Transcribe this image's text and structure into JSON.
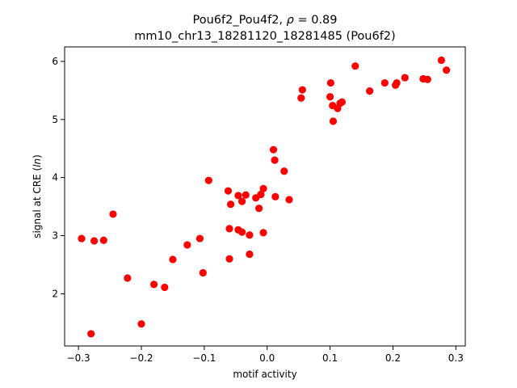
{
  "chart_data": {
    "type": "scatter",
    "title_line1_prefix": "Pou6f2_Pou4f2, ",
    "title_rho": "ρ",
    "title_line1_suffix": " = 0.89",
    "title_line2": "mm10_chr13_18281120_18281485 (Pou6f2)",
    "xlabel": "motif activity",
    "ylabel_prefix": "signal at CRE (",
    "ylabel_italic": "ln",
    "ylabel_suffix": ")",
    "xlim": [
      -0.322,
      0.315
    ],
    "ylim": [
      1.1,
      6.25
    ],
    "xticks": [
      -0.3,
      -0.2,
      -0.1,
      0.0,
      0.1,
      0.2,
      0.3
    ],
    "xtick_labels": [
      "−0.3",
      "−0.2",
      "−0.1",
      "0.0",
      "0.1",
      "0.2",
      "0.3"
    ],
    "yticks": [
      2,
      3,
      4,
      5,
      6
    ],
    "ytick_labels": [
      "2",
      "3",
      "4",
      "5",
      "6"
    ],
    "marker_color": "#ff0000",
    "grid": false,
    "points": [
      {
        "x": -0.295,
        "y": 2.95
      },
      {
        "x": -0.275,
        "y": 2.91
      },
      {
        "x": -0.26,
        "y": 2.92
      },
      {
        "x": -0.28,
        "y": 1.31
      },
      {
        "x": -0.245,
        "y": 3.37
      },
      {
        "x": -0.222,
        "y": 2.27
      },
      {
        "x": -0.2,
        "y": 1.48
      },
      {
        "x": -0.18,
        "y": 2.16
      },
      {
        "x": -0.163,
        "y": 2.11
      },
      {
        "x": -0.15,
        "y": 2.59
      },
      {
        "x": -0.127,
        "y": 2.84
      },
      {
        "x": -0.107,
        "y": 2.95
      },
      {
        "x": -0.102,
        "y": 2.36
      },
      {
        "x": -0.093,
        "y": 3.95
      },
      {
        "x": -0.062,
        "y": 3.77
      },
      {
        "x": -0.058,
        "y": 3.54
      },
      {
        "x": -0.06,
        "y": 3.12
      },
      {
        "x": -0.06,
        "y": 2.6
      },
      {
        "x": -0.046,
        "y": 3.69
      },
      {
        "x": -0.046,
        "y": 3.1
      },
      {
        "x": -0.04,
        "y": 3.59
      },
      {
        "x": -0.04,
        "y": 3.06
      },
      {
        "x": -0.034,
        "y": 3.7
      },
      {
        "x": -0.028,
        "y": 3.01
      },
      {
        "x": -0.028,
        "y": 2.68
      },
      {
        "x": -0.018,
        "y": 3.65
      },
      {
        "x": -0.013,
        "y": 3.47
      },
      {
        "x": -0.01,
        "y": 3.71
      },
      {
        "x": -0.006,
        "y": 3.81
      },
      {
        "x": -0.006,
        "y": 3.05
      },
      {
        "x": 0.01,
        "y": 4.48
      },
      {
        "x": 0.012,
        "y": 4.3
      },
      {
        "x": 0.013,
        "y": 3.67
      },
      {
        "x": 0.027,
        "y": 4.11
      },
      {
        "x": 0.035,
        "y": 3.62
      },
      {
        "x": 0.054,
        "y": 5.37
      },
      {
        "x": 0.056,
        "y": 5.51
      },
      {
        "x": 0.1,
        "y": 5.39
      },
      {
        "x": 0.101,
        "y": 5.63
      },
      {
        "x": 0.104,
        "y": 5.24
      },
      {
        "x": 0.105,
        "y": 4.97
      },
      {
        "x": 0.112,
        "y": 5.19
      },
      {
        "x": 0.116,
        "y": 5.28
      },
      {
        "x": 0.119,
        "y": 5.3
      },
      {
        "x": 0.14,
        "y": 5.92
      },
      {
        "x": 0.163,
        "y": 5.49
      },
      {
        "x": 0.187,
        "y": 5.63
      },
      {
        "x": 0.204,
        "y": 5.59
      },
      {
        "x": 0.206,
        "y": 5.63
      },
      {
        "x": 0.219,
        "y": 5.72
      },
      {
        "x": 0.248,
        "y": 5.7
      },
      {
        "x": 0.255,
        "y": 5.69
      },
      {
        "x": 0.277,
        "y": 6.02
      },
      {
        "x": 0.285,
        "y": 5.85
      }
    ]
  }
}
